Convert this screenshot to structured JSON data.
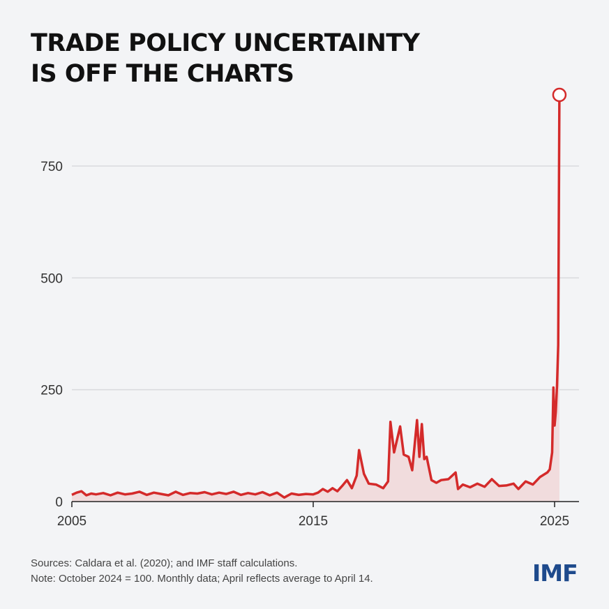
{
  "chart_data": {
    "type": "area",
    "title": "TRADE POLICY UNCERTAINTY",
    "title_line2": "IS OFF THE CHARTS",
    "xlabel": "",
    "ylabel": "",
    "xlim": [
      2005,
      2026
    ],
    "ylim": [
      0,
      950
    ],
    "grid": true,
    "x_ticks": [
      {
        "value": 2005,
        "label": "2005"
      },
      {
        "value": 2015,
        "label": "2015"
      },
      {
        "value": 2025,
        "label": "2025"
      }
    ],
    "y_ticks": [
      {
        "value": 0,
        "label": "0"
      },
      {
        "value": 250,
        "label": "250"
      },
      {
        "value": 500,
        "label": "500"
      },
      {
        "value": 750,
        "label": "750"
      }
    ],
    "line_color": "#d42a2a",
    "fill_color": "#f1dcdd",
    "x": [
      2005.0,
      2005.2,
      2005.4,
      2005.6,
      2005.8,
      2006.0,
      2006.3,
      2006.6,
      2006.9,
      2007.2,
      2007.5,
      2007.8,
      2008.1,
      2008.4,
      2008.7,
      2009.0,
      2009.3,
      2009.6,
      2009.9,
      2010.2,
      2010.5,
      2010.8,
      2011.1,
      2011.4,
      2011.7,
      2012.0,
      2012.3,
      2012.6,
      2012.9,
      2013.2,
      2013.5,
      2013.8,
      2014.1,
      2014.4,
      2014.7,
      2015.0,
      2015.2,
      2015.4,
      2015.6,
      2015.8,
      2016.0,
      2016.2,
      2016.4,
      2016.6,
      2016.8,
      2016.9,
      2017.1,
      2017.3,
      2017.6,
      2017.9,
      2018.1,
      2018.2,
      2018.35,
      2018.6,
      2018.75,
      2018.95,
      2019.1,
      2019.3,
      2019.4,
      2019.5,
      2019.6,
      2019.7,
      2019.9,
      2020.1,
      2020.3,
      2020.6,
      2020.9,
      2021.0,
      2021.2,
      2021.5,
      2021.8,
      2022.1,
      2022.4,
      2022.7,
      2023.0,
      2023.3,
      2023.5,
      2023.8,
      2024.1,
      2024.4,
      2024.7,
      2024.8,
      2024.9,
      2024.95,
      2025.0,
      2025.05,
      2025.1,
      2025.15,
      2025.2
    ],
    "values": [
      15,
      20,
      23,
      14,
      18,
      16,
      19,
      14,
      20,
      16,
      18,
      22,
      15,
      20,
      17,
      14,
      22,
      15,
      19,
      18,
      21,
      16,
      20,
      17,
      22,
      15,
      19,
      16,
      21,
      14,
      20,
      9,
      18,
      15,
      17,
      16,
      20,
      28,
      22,
      30,
      23,
      35,
      48,
      30,
      58,
      115,
      62,
      40,
      38,
      30,
      45,
      178,
      110,
      168,
      105,
      100,
      70,
      182,
      100,
      173,
      95,
      100,
      48,
      42,
      48,
      50,
      65,
      28,
      38,
      32,
      40,
      33,
      50,
      35,
      36,
      40,
      28,
      45,
      38,
      55,
      65,
      72,
      110,
      255,
      170,
      200,
      260,
      350,
      909
    ],
    "end_marker": {
      "x": 2025.2,
      "value": 909
    }
  },
  "footer": {
    "sources": "Sources: Caldara et al. (2020); and IMF staff calculations.",
    "note": "Note: October 2024 = 100. Monthly data; April reflects average to April 14.",
    "logo": "IMF"
  }
}
